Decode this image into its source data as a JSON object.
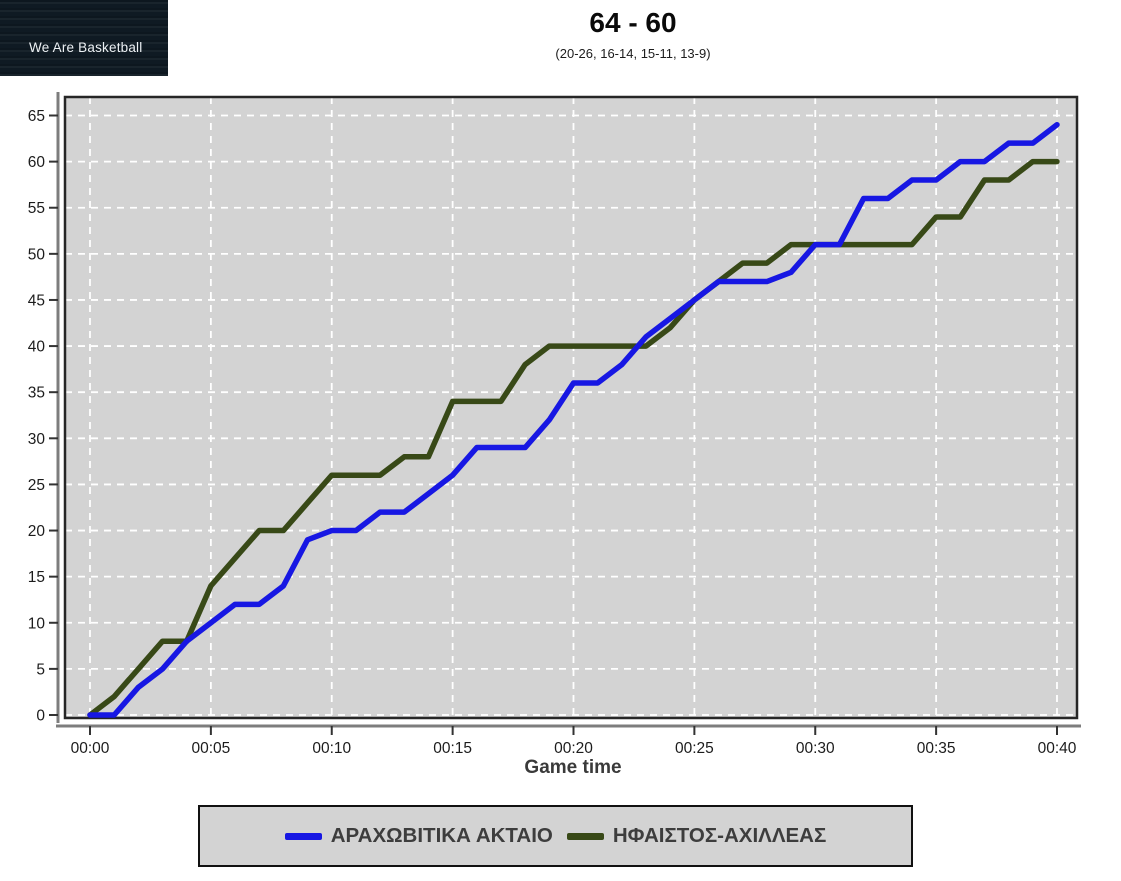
{
  "logo": {
    "text": "We Are Basketball"
  },
  "header": {
    "score": "64 - 60",
    "quarters": "(20-26, 16-14, 15-11, 13-9)"
  },
  "colors": {
    "plot_bg": "#d3d3d3",
    "grid": "#ffffff",
    "axis": "#7d7d7d",
    "plot_border": "#262626",
    "tick": "#333333",
    "tick_label": "#1c1c1c",
    "home": "#1717e3",
    "away": "#384917"
  },
  "chart_data": {
    "type": "line",
    "title": "64 - 60",
    "subtitle": "(20-26, 16-14, 15-11, 13-9)",
    "xlabel": "Game time",
    "ylabel": "",
    "xlim": [
      0,
      40
    ],
    "ylim": [
      0,
      65
    ],
    "grid": "white dashed on gray background",
    "legend_position": "bottom",
    "x_unit": "minutes",
    "x_ticks": [
      {
        "value": 0,
        "label": "00:00"
      },
      {
        "value": 5,
        "label": "00:05"
      },
      {
        "value": 10,
        "label": "00:10"
      },
      {
        "value": 15,
        "label": "00:15"
      },
      {
        "value": 20,
        "label": "00:20"
      },
      {
        "value": 25,
        "label": "00:25"
      },
      {
        "value": 30,
        "label": "00:30"
      },
      {
        "value": 35,
        "label": "00:35"
      },
      {
        "value": 40,
        "label": "00:40"
      }
    ],
    "y_ticks": [
      0,
      5,
      10,
      15,
      20,
      25,
      30,
      35,
      40,
      45,
      50,
      55,
      60,
      65
    ],
    "x": [
      0,
      1,
      2,
      3,
      4,
      5,
      6,
      7,
      8,
      9,
      10,
      11,
      12,
      13,
      14,
      15,
      16,
      17,
      18,
      19,
      20,
      21,
      22,
      23,
      24,
      25,
      26,
      27,
      28,
      29,
      30,
      31,
      32,
      33,
      34,
      35,
      36,
      37,
      38,
      39,
      40
    ],
    "series": [
      {
        "name": "ΑΡΑΧΩΒΙΤΙΚΑ ΑΚΤΑΙΟ",
        "final_score": 64,
        "color": "#1717e3",
        "values": [
          0,
          0,
          3,
          5,
          8,
          10,
          12,
          12,
          14,
          19,
          20,
          20,
          22,
          22,
          24,
          26,
          29,
          29,
          29,
          32,
          36,
          36,
          38,
          41,
          43,
          45,
          47,
          47,
          47,
          48,
          51,
          51,
          56,
          56,
          58,
          58,
          60,
          60,
          62,
          62,
          64
        ]
      },
      {
        "name": "ΗΦΑΙΣΤΟΣ-ΑΧΙΛΛΕΑΣ",
        "final_score": 60,
        "color": "#384917",
        "values": [
          0,
          2,
          5,
          8,
          8,
          14,
          17,
          20,
          20,
          23,
          26,
          26,
          26,
          28,
          28,
          34,
          34,
          34,
          38,
          40,
          40,
          40,
          40,
          40,
          42,
          45,
          47,
          49,
          49,
          51,
          51,
          51,
          51,
          51,
          51,
          54,
          54,
          58,
          58,
          60,
          60
        ]
      }
    ]
  }
}
